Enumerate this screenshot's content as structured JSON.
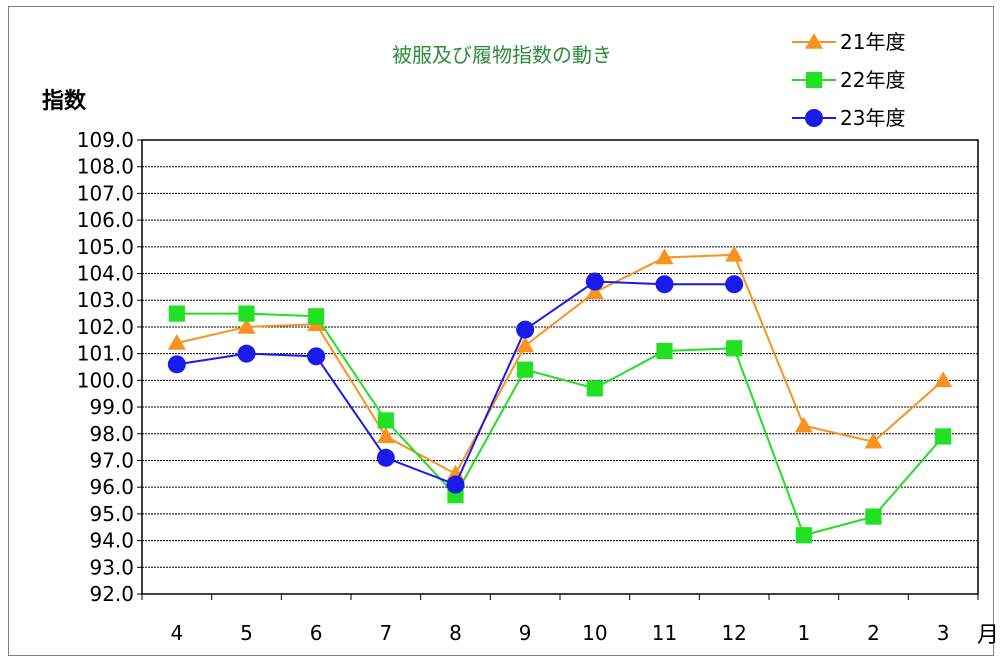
{
  "chart_data": {
    "type": "line",
    "title": "被服及び履物指数の動き",
    "ylabel": "指数",
    "xlabel": "月",
    "categories": [
      "4",
      "5",
      "6",
      "7",
      "8",
      "9",
      "10",
      "11",
      "12",
      "1",
      "2",
      "3"
    ],
    "ylim": [
      92.0,
      109.0
    ],
    "ytick_step": 1.0,
    "yticks": [
      "109.0",
      "108.0",
      "107.0",
      "106.0",
      "105.0",
      "104.0",
      "103.0",
      "102.0",
      "101.0",
      "100.0",
      "99.0",
      "98.0",
      "97.0",
      "96.0",
      "95.0",
      "94.0",
      "93.0",
      "92.0"
    ],
    "grid": true,
    "legend_position": "top-right",
    "series": [
      {
        "name": "21年度",
        "color": "#f7931e",
        "marker": "triangle",
        "values": [
          101.4,
          102.0,
          102.1,
          97.9,
          96.5,
          101.3,
          103.3,
          104.6,
          104.7,
          98.3,
          97.7,
          100.0
        ]
      },
      {
        "name": "22年度",
        "color": "#22e022",
        "marker": "square",
        "values": [
          102.5,
          102.5,
          102.4,
          98.5,
          95.7,
          100.4,
          99.7,
          101.1,
          101.2,
          94.2,
          94.9,
          97.9
        ]
      },
      {
        "name": "23年度",
        "color": "#1a1aeb",
        "marker": "circle",
        "values": [
          100.6,
          101.0,
          100.9,
          97.1,
          96.1,
          101.9,
          103.7,
          103.6,
          103.6,
          null,
          null,
          null
        ]
      }
    ]
  }
}
